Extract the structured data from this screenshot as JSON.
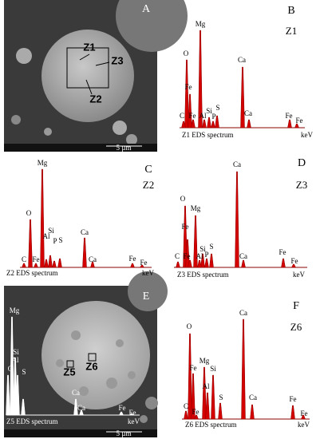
{
  "panels": [
    {
      "letter": "A",
      "zones": [
        "Z1",
        "Z3",
        "Z2"
      ],
      "scale": "5 µm"
    },
    {
      "letter": "B",
      "zone": "Z1",
      "peaks": [
        "O",
        "Fe",
        "Mg",
        "C",
        "Fe",
        "Al",
        "Si",
        "P",
        "S",
        "Ca",
        "Ca",
        "Fe",
        "Fe"
      ],
      "caption": "Z1 EDS spectrum",
      "unit": "keV"
    },
    {
      "letter": "C",
      "zone": "Z2",
      "peaks": [
        "O",
        "Mg",
        "Si",
        "Al",
        "P",
        "S",
        "Ca",
        "C",
        "Fe",
        "Ca",
        "Fe",
        "Fe"
      ],
      "caption": "Z2 EDS spectrum",
      "unit": "keV"
    },
    {
      "letter": "D",
      "zone": "Z3",
      "peaks": [
        "O",
        "Fe",
        "Mg",
        "Si",
        "Al",
        "P",
        "S",
        "Ca",
        "C",
        "Fe",
        "Ca",
        "Fe",
        "Fe"
      ],
      "caption": "Z3 EDS spectrum",
      "unit": "keV"
    },
    {
      "letter": "E",
      "zones": [
        "Z5",
        "Z6"
      ],
      "scale": "5 µm",
      "peaks": [
        "Mg",
        "Si",
        "Al",
        "S",
        "O",
        "Ca",
        "Ca",
        "Fe",
        "Fe"
      ],
      "caption": "Z5 EDS spectrum",
      "unit": "keV"
    },
    {
      "letter": "F",
      "zone": "Z6",
      "peaks": [
        "O",
        "Fe",
        "Mg",
        "Si",
        "Al",
        "S",
        "Ca",
        "Ca",
        "C",
        "Fe",
        "Fe",
        "Fe"
      ],
      "caption": "Z6 EDS spectrum",
      "unit": "keV"
    }
  ]
}
